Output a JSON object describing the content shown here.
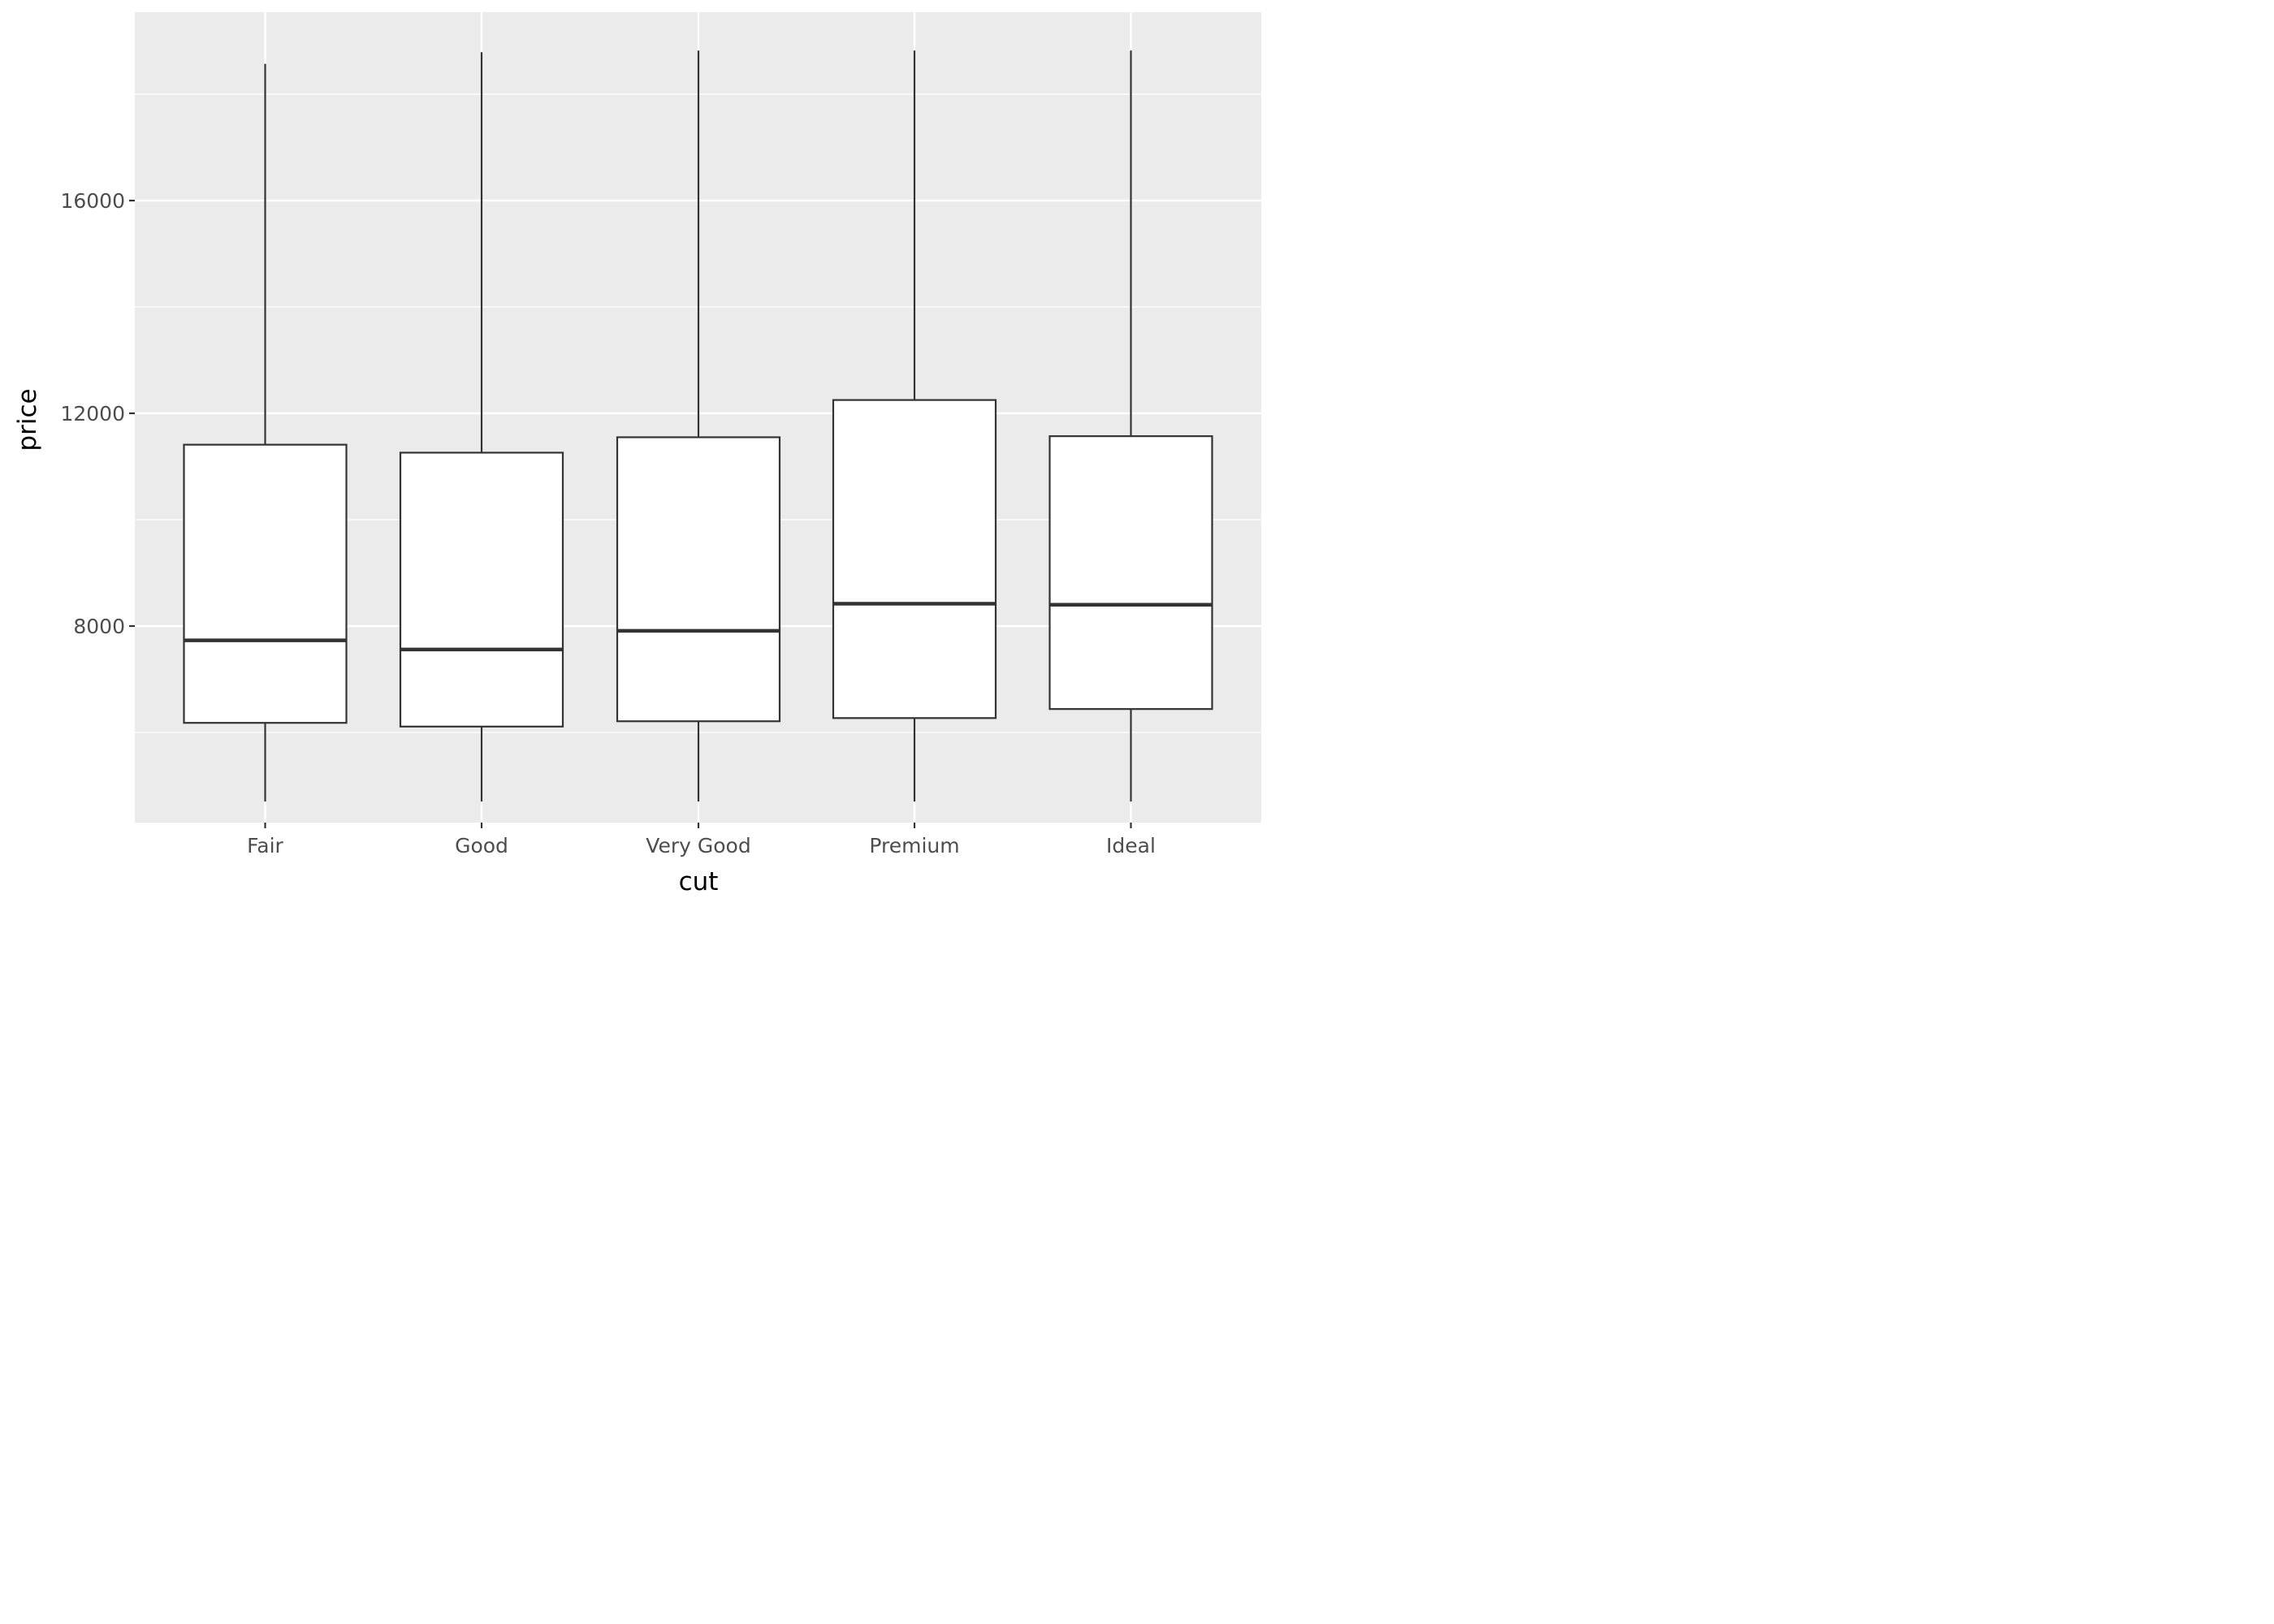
{
  "chart_data": {
    "type": "boxplot",
    "xlabel": "cut",
    "ylabel": "price",
    "categories": [
      "Fair",
      "Good",
      "Very Good",
      "Premium",
      "Ideal"
    ],
    "boxes": [
      {
        "category": "Fair",
        "whisker_low": 4700,
        "q1": 6180,
        "median": 7730,
        "q3": 11410,
        "whisker_high": 18570
      },
      {
        "category": "Good",
        "whisker_low": 4700,
        "q1": 6110,
        "median": 7560,
        "q3": 11260,
        "whisker_high": 18790
      },
      {
        "category": "Very Good",
        "whisker_low": 4700,
        "q1": 6210,
        "median": 7910,
        "q3": 11550,
        "whisker_high": 18820
      },
      {
        "category": "Premium",
        "whisker_low": 4700,
        "q1": 6270,
        "median": 8420,
        "q3": 12250,
        "whisker_high": 18820
      },
      {
        "category": "Ideal",
        "whisker_low": 4700,
        "q1": 6440,
        "median": 8400,
        "q3": 11570,
        "whisker_high": 18820
      }
    ],
    "yticks": [
      8000,
      12000,
      16000
    ],
    "ytick_labels": [
      "8000",
      "12000",
      "16000"
    ],
    "yminor": [
      6000,
      10000,
      14000,
      18000
    ],
    "ylim": [
      4000,
      19700
    ],
    "grid": true,
    "colors": {
      "panel_background": "#ebebeb",
      "grid_major": "#ffffff",
      "grid_minor": "#ffffff",
      "box_fill": "#ffffff",
      "box_stroke": "#333333",
      "tick_mark": "#333333"
    }
  }
}
